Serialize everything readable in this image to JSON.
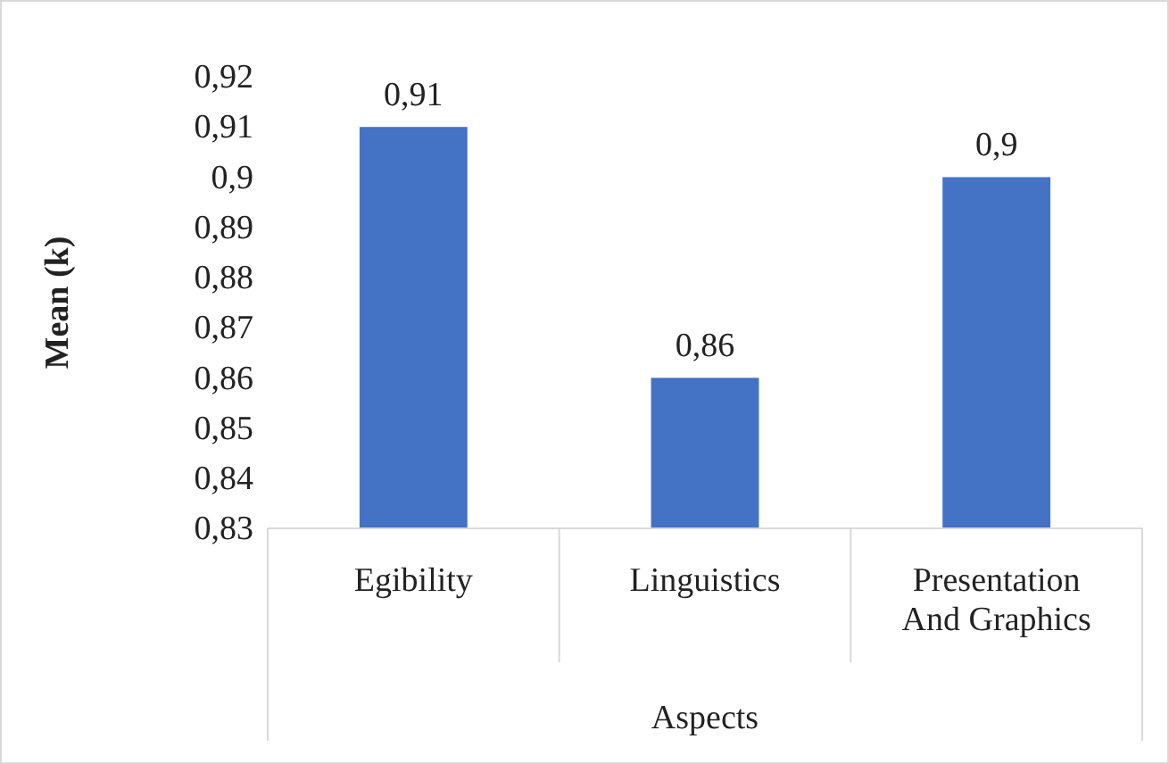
{
  "chart_data": {
    "type": "bar",
    "xlabel": "Aspects",
    "ylabel": "Mean (k)",
    "categories": [
      "Egibility",
      "Linguistics",
      "Presentation And Graphics"
    ],
    "values": [
      0.91,
      0.86,
      0.9
    ],
    "color": "#4472c4",
    "value_labels": [
      "0,91",
      "0,86",
      "0,9"
    ],
    "ylim": [
      0.83,
      0.92
    ],
    "yticks": [
      {
        "value": 0.83,
        "label": "0,83"
      },
      {
        "value": 0.84,
        "label": "0,84"
      },
      {
        "value": 0.85,
        "label": "0,85"
      },
      {
        "value": 0.86,
        "label": "0,86"
      },
      {
        "value": 0.87,
        "label": "0,87"
      },
      {
        "value": 0.88,
        "label": "0,88"
      },
      {
        "value": 0.89,
        "label": "0,89"
      },
      {
        "value": 0.9,
        "label": "0,9"
      },
      {
        "value": 0.91,
        "label": "0,91"
      },
      {
        "value": 0.92,
        "label": "0,92"
      }
    ],
    "grid": false
  }
}
